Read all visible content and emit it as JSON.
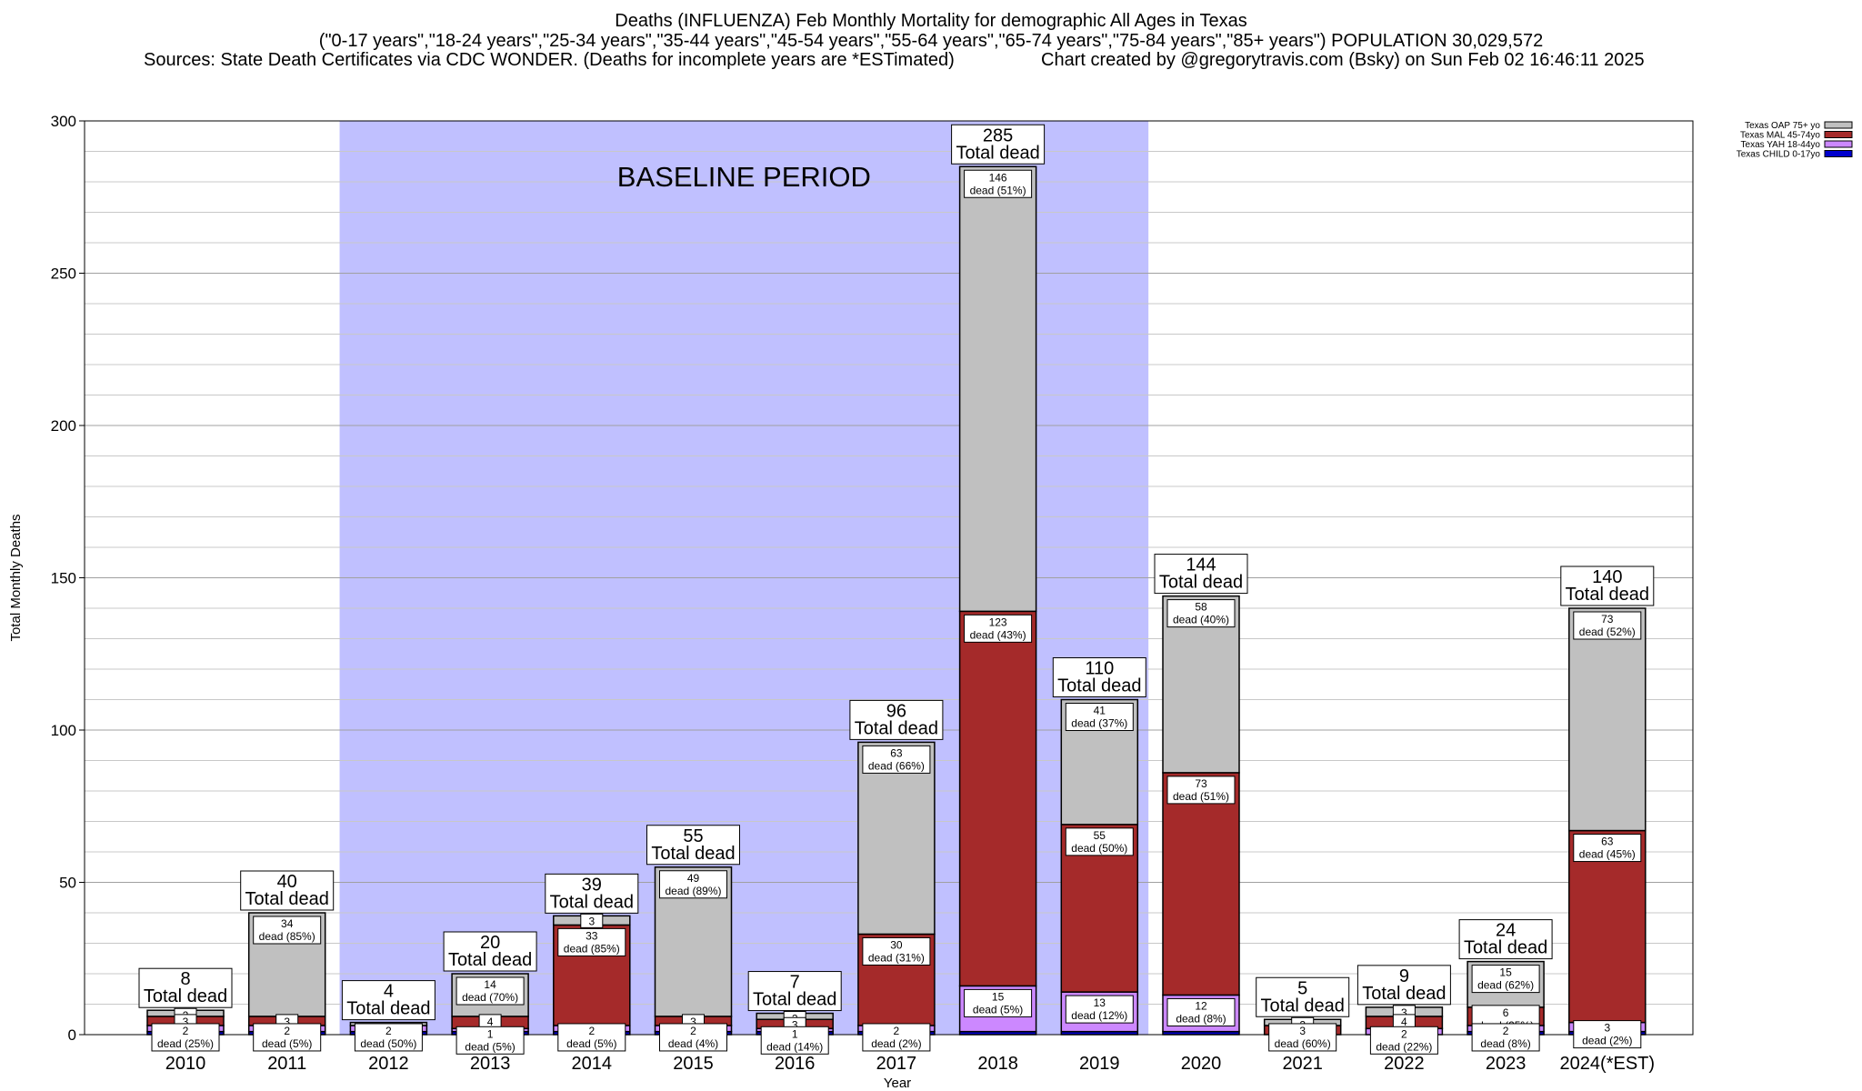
{
  "header": {
    "title": "Deaths (INFLUENZA) Feb Monthly Mortality for demographic All Ages in Texas",
    "subtitle": "(\"0-17 years\",\"18-24 years\",\"25-34 years\",\"35-44 years\",\"45-54 years\",\"55-64 years\",\"65-74 years\",\"75-84 years\",\"85+ years\") POPULATION 30,029,572",
    "sources": "Sources: State Death Certificates via CDC WONDER. (Deaths for incomplete years are *ESTimated)",
    "credit": "Chart created by @gregorytravis.com (Bsky) on Sun Feb 02 16:46:11 2025"
  },
  "chart_data": {
    "type": "bar",
    "stacked": true,
    "xlabel": "Year",
    "ylabel": "Total Monthly Deaths",
    "ylim": [
      0,
      300
    ],
    "yticks": [
      0,
      50,
      100,
      150,
      200,
      250,
      300
    ],
    "grid": true,
    "legend_position": "top-right",
    "baseline_label": "BASELINE PERIOD",
    "baseline_range": [
      "2012",
      "2019"
    ],
    "categories": [
      "2010",
      "2011",
      "2012",
      "2013",
      "2014",
      "2015",
      "2016",
      "2017",
      "2018",
      "2019",
      "2020",
      "2021",
      "2022",
      "2023",
      "2024(*EST)"
    ],
    "totals": [
      8,
      40,
      4,
      20,
      39,
      55,
      7,
      96,
      285,
      110,
      144,
      5,
      9,
      24,
      140
    ],
    "total_suffix": "Total dead",
    "series": [
      {
        "name": "Texas CHILD 0-17yo",
        "color": "#0000cc",
        "values": [
          1,
          1,
          1,
          1,
          1,
          1,
          1,
          1,
          1,
          1,
          1,
          0,
          0,
          1,
          1
        ]
      },
      {
        "name": "Texas YAH 18-44yo",
        "color": "#cc88ff",
        "values": [
          2,
          2,
          2,
          1,
          2,
          2,
          1,
          2,
          15,
          13,
          12,
          0,
          2,
          2,
          3
        ]
      },
      {
        "name": "Texas MAL 45-74yo",
        "color": "#a52a2a",
        "values": [
          3,
          3,
          0,
          4,
          33,
          3,
          3,
          30,
          123,
          55,
          73,
          3,
          4,
          6,
          63
        ]
      },
      {
        "name": "Texas OAP 75+ yo",
        "color": "#c0c0c0",
        "values": [
          2,
          34,
          1,
          14,
          3,
          49,
          2,
          63,
          146,
          41,
          58,
          2,
          3,
          15,
          73
        ]
      }
    ],
    "segment_labels": [
      {
        "category": "2010",
        "series": "Texas OAP 75+ yo",
        "value": "2",
        "pct": ""
      },
      {
        "category": "2010",
        "series": "Texas MAL 45-74yo",
        "value": "3",
        "pct": ""
      },
      {
        "category": "2010",
        "series": "Texas YAH 18-44yo",
        "value": "2",
        "pct": "dead (25%)"
      },
      {
        "category": "2011",
        "series": "Texas OAP 75+ yo",
        "value": "34",
        "pct": "dead (85%)"
      },
      {
        "category": "2011",
        "series": "Texas MAL 45-74yo",
        "value": "3",
        "pct": ""
      },
      {
        "category": "2011",
        "series": "Texas YAH 18-44yo",
        "value": "2",
        "pct": "dead (5%)"
      },
      {
        "category": "2012",
        "series": "Texas YAH 18-44yo",
        "value": "2",
        "pct": "dead (50%)"
      },
      {
        "category": "2013",
        "series": "Texas OAP 75+ yo",
        "value": "14",
        "pct": "dead (70%)"
      },
      {
        "category": "2013",
        "series": "Texas MAL 45-74yo",
        "value": "4",
        "pct": ""
      },
      {
        "category": "2013",
        "series": "Texas YAH 18-44yo",
        "value": "1",
        "pct": "dead (5%)"
      },
      {
        "category": "2014",
        "series": "Texas OAP 75+ yo",
        "value": "3",
        "pct": ""
      },
      {
        "category": "2014",
        "series": "Texas MAL 45-74yo",
        "value": "33",
        "pct": "dead (85%)"
      },
      {
        "category": "2014",
        "series": "Texas YAH 18-44yo",
        "value": "2",
        "pct": "dead (5%)"
      },
      {
        "category": "2015",
        "series": "Texas OAP 75+ yo",
        "value": "49",
        "pct": "dead (89%)"
      },
      {
        "category": "2015",
        "series": "Texas MAL 45-74yo",
        "value": "3",
        "pct": ""
      },
      {
        "category": "2015",
        "series": "Texas YAH 18-44yo",
        "value": "2",
        "pct": "dead (4%)"
      },
      {
        "category": "2016",
        "series": "Texas OAP 75+ yo",
        "value": "2",
        "pct": ""
      },
      {
        "category": "2016",
        "series": "Texas MAL 45-74yo",
        "value": "3",
        "pct": ""
      },
      {
        "category": "2016",
        "series": "Texas YAH 18-44yo",
        "value": "1",
        "pct": "dead (14%)"
      },
      {
        "category": "2017",
        "series": "Texas OAP 75+ yo",
        "value": "63",
        "pct": "dead (66%)"
      },
      {
        "category": "2017",
        "series": "Texas MAL 45-74yo",
        "value": "30",
        "pct": "dead (31%)"
      },
      {
        "category": "2017",
        "series": "Texas YAH 18-44yo",
        "value": "2",
        "pct": "dead (2%)"
      },
      {
        "category": "2018",
        "series": "Texas OAP 75+ yo",
        "value": "146",
        "pct": "dead (51%)"
      },
      {
        "category": "2018",
        "series": "Texas MAL 45-74yo",
        "value": "123",
        "pct": "dead (43%)"
      },
      {
        "category": "2018",
        "series": "Texas YAH 18-44yo",
        "value": "15",
        "pct": "dead (5%)"
      },
      {
        "category": "2019",
        "series": "Texas OAP 75+ yo",
        "value": "41",
        "pct": "dead (37%)"
      },
      {
        "category": "2019",
        "series": "Texas MAL 45-74yo",
        "value": "55",
        "pct": "dead (50%)"
      },
      {
        "category": "2019",
        "series": "Texas YAH 18-44yo",
        "value": "13",
        "pct": "dead (12%)"
      },
      {
        "category": "2020",
        "series": "Texas OAP 75+ yo",
        "value": "58",
        "pct": "dead (40%)"
      },
      {
        "category": "2020",
        "series": "Texas MAL 45-74yo",
        "value": "73",
        "pct": "dead (51%)"
      },
      {
        "category": "2020",
        "series": "Texas YAH 18-44yo",
        "value": "12",
        "pct": "dead (8%)"
      },
      {
        "category": "2021",
        "series": "Texas OAP 75+ yo",
        "value": "2",
        "pct": ""
      },
      {
        "category": "2021",
        "series": "Texas MAL 45-74yo",
        "value": "3",
        "pct": "dead (60%)"
      },
      {
        "category": "2022",
        "series": "Texas OAP 75+ yo",
        "value": "3",
        "pct": ""
      },
      {
        "category": "2022",
        "series": "Texas MAL 45-74yo",
        "value": "4",
        "pct": ""
      },
      {
        "category": "2022",
        "series": "Texas YAH 18-44yo",
        "value": "2",
        "pct": "dead (22%)"
      },
      {
        "category": "2023",
        "series": "Texas OAP 75+ yo",
        "value": "15",
        "pct": "dead (62%)"
      },
      {
        "category": "2023",
        "series": "Texas MAL 45-74yo",
        "value": "6",
        "pct": "dead (25%)"
      },
      {
        "category": "2023",
        "series": "Texas YAH 18-44yo",
        "value": "2",
        "pct": "dead (8%)"
      },
      {
        "category": "2024(*EST)",
        "series": "Texas OAP 75+ yo",
        "value": "73",
        "pct": "dead (52%)"
      },
      {
        "category": "2024(*EST)",
        "series": "Texas MAL 45-74yo",
        "value": "63",
        "pct": "dead (45%)"
      },
      {
        "category": "2024(*EST)",
        "series": "Texas YAH 18-44yo",
        "value": "3",
        "pct": "dead (2%)"
      }
    ]
  }
}
